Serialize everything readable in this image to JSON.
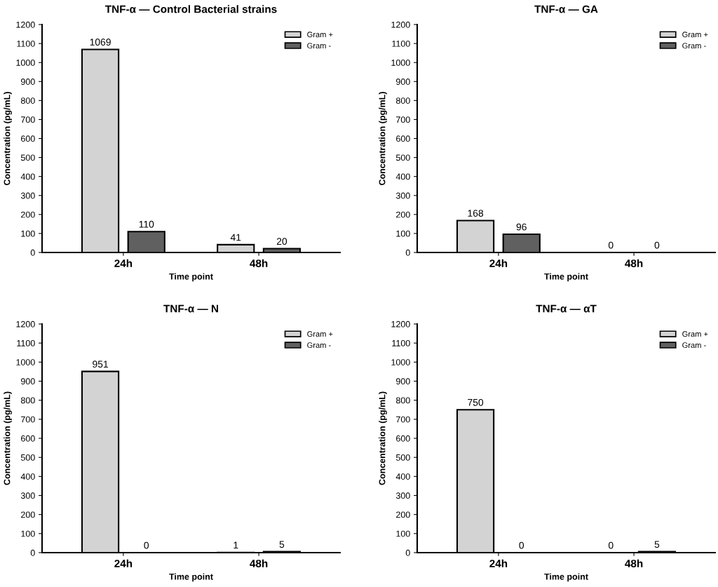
{
  "chart_data": [
    {
      "type": "bar",
      "title": "TNF-α — Control Bacterial strains",
      "xlabel": "Time point",
      "ylabel": "Concentration (pg/mL)",
      "categories": [
        "24h",
        "48h"
      ],
      "series": [
        {
          "name": "Gram +",
          "color": "#d3d3d3",
          "values": [
            1069,
            41
          ]
        },
        {
          "name": "Gram -",
          "color": "#606060",
          "values": [
            110,
            20
          ]
        }
      ],
      "ylim": [
        0,
        1200
      ],
      "yticks": [
        0,
        100,
        200,
        300,
        400,
        500,
        600,
        700,
        800,
        900,
        1000,
        1100,
        1200
      ],
      "data_labels": true,
      "legend": "top right",
      "grid": false
    },
    {
      "type": "bar",
      "title": "TNF-α — GA",
      "xlabel": "Time point",
      "ylabel": "Concentration (pg/mL)",
      "categories": [
        "24h",
        "48h"
      ],
      "series": [
        {
          "name": "Gram +",
          "color": "#d3d3d3",
          "values": [
            168,
            0
          ]
        },
        {
          "name": "Gram -",
          "color": "#606060",
          "values": [
            96,
            0
          ]
        }
      ],
      "ylim": [
        0,
        1200
      ],
      "yticks": [
        0,
        100,
        200,
        300,
        400,
        500,
        600,
        700,
        800,
        900,
        1000,
        1100,
        1200
      ],
      "data_labels": true,
      "legend": "top right",
      "grid": false
    },
    {
      "type": "bar",
      "title": "TNF-α — N",
      "xlabel": "Time point",
      "ylabel": "Concentration (pg/mL)",
      "categories": [
        "24h",
        "48h"
      ],
      "series": [
        {
          "name": "Gram +",
          "color": "#d3d3d3",
          "values": [
            951,
            1
          ]
        },
        {
          "name": "Gram -",
          "color": "#606060",
          "values": [
            0,
            5
          ]
        }
      ],
      "ylim": [
        0,
        1200
      ],
      "yticks": [
        0,
        100,
        200,
        300,
        400,
        500,
        600,
        700,
        800,
        900,
        1000,
        1100,
        1200
      ],
      "data_labels": true,
      "legend": "top right",
      "grid": false
    },
    {
      "type": "bar",
      "title": "TNF-α — αT",
      "xlabel": "Time point",
      "ylabel": "Concentration (pg/mL)",
      "categories": [
        "24h",
        "48h"
      ],
      "series": [
        {
          "name": "Gram +",
          "color": "#d3d3d3",
          "values": [
            750,
            0
          ]
        },
        {
          "name": "Gram -",
          "color": "#606060",
          "values": [
            0,
            5
          ]
        }
      ],
      "ylim": [
        0,
        1200
      ],
      "yticks": [
        0,
        100,
        200,
        300,
        400,
        500,
        600,
        700,
        800,
        900,
        1000,
        1100,
        1200
      ],
      "data_labels": true,
      "legend": "top right",
      "grid": false
    }
  ]
}
